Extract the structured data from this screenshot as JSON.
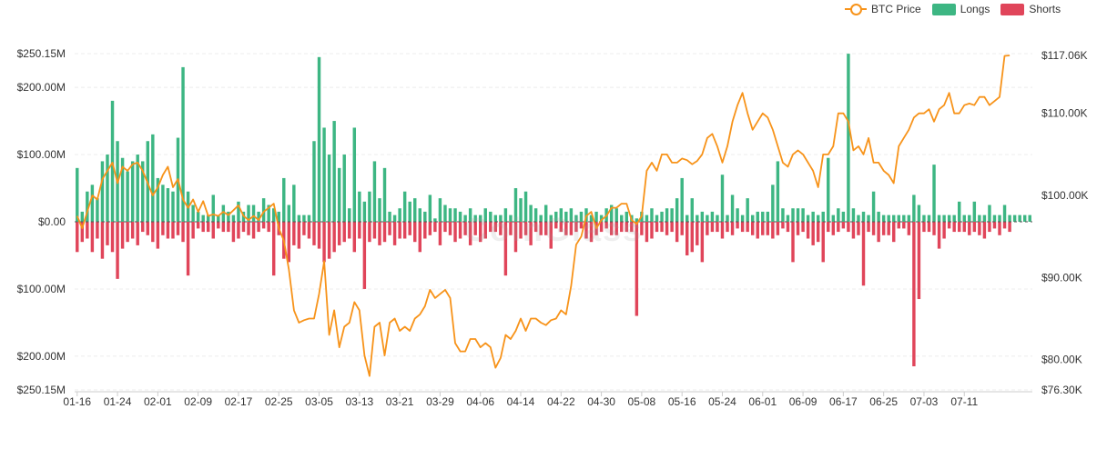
{
  "chart_data": {
    "type": "bar",
    "legend": {
      "position": "top-right",
      "items": [
        {
          "name": "BTC Price",
          "color": "#F7931A",
          "kind": "line"
        },
        {
          "name": "Longs",
          "color": "#3DB683",
          "kind": "bar"
        },
        {
          "name": "Shorts",
          "color": "#E0455A",
          "kind": "bar"
        }
      ]
    },
    "left_axis": {
      "ticks": [
        {
          "value": 250.15,
          "label": "$250.15M"
        },
        {
          "value": 200,
          "label": "$200.00M"
        },
        {
          "value": 100,
          "label": "$100.00M"
        },
        {
          "value": 0,
          "label": "$0.00"
        },
        {
          "value": -100,
          "label": "$100.00M"
        },
        {
          "value": -200,
          "label": "$200.00M"
        },
        {
          "value": -250.15,
          "label": "$250.15M"
        }
      ],
      "range": [
        -250.15,
        250.15
      ],
      "unit": "M USD"
    },
    "right_axis": {
      "ticks": [
        {
          "value": 117.06,
          "label": "$117.06K"
        },
        {
          "value": 110,
          "label": "$110.00K"
        },
        {
          "value": 100,
          "label": "$100.00K"
        },
        {
          "value": 90,
          "label": "$90.00K"
        },
        {
          "value": 80,
          "label": "$80.00K"
        },
        {
          "value": 76.3,
          "label": "$76.30K"
        }
      ],
      "range": [
        76.3,
        117.06
      ],
      "unit": "K USD"
    },
    "x_ticks": [
      {
        "index": 0,
        "label": "01-16"
      },
      {
        "index": 8,
        "label": "01-24"
      },
      {
        "index": 16,
        "label": "02-01"
      },
      {
        "index": 24,
        "label": "02-09"
      },
      {
        "index": 32,
        "label": "02-17"
      },
      {
        "index": 40,
        "label": "02-25"
      },
      {
        "index": 48,
        "label": "03-05"
      },
      {
        "index": 56,
        "label": "03-13"
      },
      {
        "index": 64,
        "label": "03-21"
      },
      {
        "index": 72,
        "label": "03-29"
      },
      {
        "index": 80,
        "label": "04-06"
      },
      {
        "index": 88,
        "label": "04-14"
      },
      {
        "index": 96,
        "label": "04-22"
      },
      {
        "index": 104,
        "label": "04-30"
      },
      {
        "index": 112,
        "label": "05-08"
      },
      {
        "index": 120,
        "label": "05-16"
      },
      {
        "index": 128,
        "label": "05-24"
      },
      {
        "index": 136,
        "label": "06-01"
      },
      {
        "index": 144,
        "label": "06-09"
      },
      {
        "index": 152,
        "label": "06-17"
      },
      {
        "index": 160,
        "label": "06-25"
      },
      {
        "index": 168,
        "label": "07-03"
      },
      {
        "index": 176,
        "label": "07-11"
      }
    ],
    "grid": true,
    "series": [
      {
        "name": "Longs",
        "values": [
          80,
          15,
          45,
          55,
          35,
          90,
          100,
          180,
          120,
          95,
          75,
          90,
          100,
          90,
          120,
          130,
          65,
          55,
          50,
          45,
          125,
          230,
          45,
          25,
          15,
          10,
          10,
          40,
          10,
          25,
          15,
          10,
          30,
          15,
          25,
          25,
          15,
          35,
          25,
          20,
          15,
          65,
          25,
          55,
          10,
          10,
          10,
          120,
          245,
          140,
          100,
          150,
          80,
          100,
          20,
          140,
          45,
          30,
          45,
          90,
          35,
          80,
          15,
          10,
          20,
          45,
          30,
          35,
          20,
          15,
          40,
          5,
          35,
          25,
          20,
          20,
          15,
          10,
          20,
          10,
          10,
          20,
          15,
          10,
          10,
          20,
          10,
          50,
          35,
          45,
          25,
          20,
          10,
          25,
          10,
          15,
          20,
          15,
          20,
          10,
          15,
          20,
          10,
          15,
          10,
          20,
          25,
          20,
          10,
          15,
          10,
          5,
          15,
          10,
          20,
          10,
          15,
          20,
          20,
          35,
          65,
          10,
          35,
          10,
          15,
          10,
          15,
          10,
          70,
          10,
          40,
          20,
          10,
          35,
          10,
          15,
          15,
          15,
          55,
          90,
          20,
          10,
          20,
          20,
          20,
          10,
          15,
          10,
          15,
          95,
          10,
          20,
          15,
          250,
          20,
          10,
          15,
          10,
          45,
          15,
          10,
          10,
          10,
          10,
          10,
          10,
          40,
          25,
          10,
          10,
          85,
          10,
          10,
          10,
          10,
          30,
          10,
          10,
          30,
          10,
          10,
          25,
          10,
          10,
          25,
          10,
          10,
          10,
          10,
          10
        ],
        "color": "#3DB683"
      },
      {
        "name": "Shorts",
        "values": [
          45,
          30,
          25,
          45,
          25,
          55,
          35,
          45,
          85,
          40,
          30,
          25,
          35,
          15,
          20,
          30,
          40,
          20,
          25,
          25,
          20,
          30,
          80,
          25,
          10,
          15,
          15,
          25,
          10,
          15,
          15,
          30,
          25,
          15,
          20,
          25,
          15,
          10,
          15,
          80,
          20,
          55,
          60,
          35,
          40,
          20,
          25,
          35,
          40,
          60,
          55,
          45,
          35,
          30,
          25,
          45,
          25,
          100,
          30,
          25,
          35,
          30,
          20,
          35,
          25,
          25,
          20,
          30,
          45,
          25,
          20,
          15,
          35,
          15,
          20,
          30,
          25,
          20,
          35,
          20,
          30,
          25,
          15,
          15,
          20,
          80,
          20,
          45,
          25,
          20,
          35,
          15,
          20,
          20,
          40,
          10,
          15,
          20,
          20,
          15,
          10,
          25,
          30,
          20,
          15,
          10,
          20,
          20,
          15,
          15,
          15,
          140,
          20,
          30,
          25,
          15,
          15,
          20,
          15,
          30,
          20,
          50,
          45,
          35,
          60,
          20,
          15,
          15,
          25,
          15,
          20,
          10,
          15,
          15,
          20,
          25,
          20,
          20,
          25,
          20,
          10,
          15,
          60,
          20,
          15,
          25,
          35,
          30,
          60,
          15,
          20,
          15,
          10,
          15,
          25,
          20,
          95,
          15,
          20,
          30,
          20,
          20,
          30,
          10,
          10,
          20,
          215,
          115,
          15,
          15,
          20,
          40,
          25,
          10,
          15,
          15,
          15,
          20,
          15,
          20,
          25,
          15,
          10,
          20,
          10,
          15
        ],
        "color": "#E0455A"
      },
      {
        "name": "BTC Price",
        "values": [
          97.5,
          96,
          98,
          100,
          99.5,
          102,
          103,
          104,
          101.5,
          103.5,
          103,
          103.8,
          104,
          103,
          101.5,
          100,
          101,
          102.5,
          103.5,
          101,
          102,
          99.5,
          98.5,
          99.5,
          98,
          99.3,
          97.5,
          97.7,
          97.5,
          98,
          97.6,
          98.2,
          98.8,
          97.5,
          97,
          97.5,
          97,
          98,
          98.5,
          99,
          96,
          94.5,
          91,
          86,
          84.5,
          84.8,
          85,
          85,
          88,
          92,
          83,
          86,
          81.5,
          84,
          84.5,
          87,
          86,
          80.5,
          78,
          84,
          84.5,
          80.5,
          84.5,
          85,
          83.5,
          84,
          83.5,
          85,
          85.5,
          86.5,
          88.5,
          87.5,
          88,
          88.5,
          87.5,
          82,
          81,
          81,
          82.5,
          82.5,
          81.5,
          82,
          81.5,
          79,
          80.2,
          83,
          82.5,
          83.5,
          85,
          83.5,
          85,
          85,
          84.5,
          84.2,
          84.8,
          85,
          86,
          85.5,
          89,
          94,
          95,
          97.5,
          98,
          96,
          97,
          97.5,
          98.5,
          98.5,
          99,
          99,
          97,
          96.5,
          97.5,
          103,
          104,
          103,
          105,
          105,
          104,
          104,
          104.5,
          104.3,
          103.8,
          104.2,
          105,
          107,
          107.5,
          106,
          104,
          106,
          109,
          111,
          112.5,
          110,
          108,
          109,
          110,
          109.5,
          108,
          106,
          104,
          103.5,
          105,
          105.5,
          105,
          104,
          103,
          101,
          105,
          105,
          106,
          110,
          110,
          109,
          105.5,
          106,
          105,
          107,
          104,
          104,
          103,
          102.5,
          101.5,
          106,
          107,
          108,
          109.5,
          110,
          110,
          110.5,
          109,
          110.5,
          111,
          112.5,
          110,
          110,
          111,
          111.2,
          111,
          112,
          112,
          111,
          111.5,
          112,
          117,
          117.06
        ],
        "color": "#F7931A"
      }
    ]
  },
  "watermark": "CoinGlass"
}
